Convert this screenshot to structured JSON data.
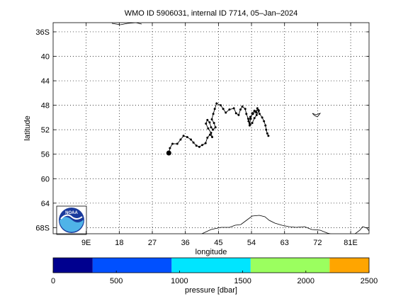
{
  "chart_data": {
    "type": "line",
    "title": "WMO ID 5906031, internal ID 7714, 05–Jan–2024",
    "xlabel": "longitude",
    "ylabel": "latitude",
    "xlim": [
      0,
      86
    ],
    "ylim": [
      -69,
      -34.5
    ],
    "x_ticks": [
      9,
      18,
      27,
      36,
      45,
      54,
      63,
      72,
      81
    ],
    "x_tick_labels": [
      "9E",
      "18",
      "27",
      "36",
      "45",
      "54",
      "63",
      "72",
      "81E"
    ],
    "y_ticks": [
      -36,
      -40,
      -44,
      -48,
      -52,
      -56,
      -60,
      -64,
      -68
    ],
    "y_tick_labels": [
      "36S",
      "40",
      "44",
      "48",
      "52",
      "56",
      "60",
      "64",
      "68S"
    ],
    "grid": true,
    "grid_style": "dotted",
    "series": [
      {
        "marker": "dot",
        "color": "#000000",
        "start_marker": [
          31.5,
          -55.8
        ],
        "points": [
          [
            31.5,
            -55.8
          ],
          [
            31.8,
            -55.0
          ],
          [
            32.5,
            -54.3
          ],
          [
            33.8,
            -54.3
          ],
          [
            34.7,
            -53.6
          ],
          [
            35.5,
            -53.0
          ],
          [
            36.5,
            -53.2
          ],
          [
            37.5,
            -53.6
          ],
          [
            38.2,
            -54.1
          ],
          [
            39.0,
            -54.6
          ],
          [
            39.8,
            -54.8
          ],
          [
            40.6,
            -54.5
          ],
          [
            41.5,
            -54.2
          ],
          [
            42.0,
            -53.3
          ],
          [
            42.7,
            -52.8
          ],
          [
            43.3,
            -53.2
          ],
          [
            43.0,
            -52.5
          ],
          [
            42.2,
            -51.8
          ],
          [
            41.6,
            -51.0
          ],
          [
            42.0,
            -50.4
          ],
          [
            42.6,
            -50.8
          ],
          [
            43.0,
            -51.6
          ],
          [
            43.5,
            -52.0
          ],
          [
            44.2,
            -51.6
          ],
          [
            43.8,
            -50.9
          ],
          [
            43.2,
            -50.3
          ],
          [
            43.6,
            -49.4
          ],
          [
            44.0,
            -48.6
          ],
          [
            44.5,
            -47.7
          ],
          [
            45.6,
            -48.0
          ],
          [
            46.3,
            -48.6
          ],
          [
            47.0,
            -49.2
          ],
          [
            48.0,
            -48.7
          ],
          [
            49.2,
            -48.5
          ],
          [
            49.8,
            -49.3
          ],
          [
            50.5,
            -49.6
          ],
          [
            51.0,
            -48.7
          ],
          [
            51.5,
            -48.2
          ],
          [
            52.3,
            -48.6
          ],
          [
            52.6,
            -49.4
          ],
          [
            53.1,
            -50.2
          ],
          [
            53.5,
            -51.0
          ],
          [
            53.8,
            -50.2
          ],
          [
            54.2,
            -49.3
          ],
          [
            54.8,
            -48.9
          ],
          [
            55.3,
            -49.2
          ],
          [
            55.6,
            -48.5
          ],
          [
            56.0,
            -48.9
          ],
          [
            55.4,
            -49.6
          ],
          [
            54.8,
            -50.1
          ],
          [
            54.2,
            -50.9
          ],
          [
            53.5,
            -51.3
          ],
          [
            53.2,
            -50.6
          ],
          [
            53.7,
            -49.9
          ],
          [
            54.4,
            -49.4
          ],
          [
            55.1,
            -49.0
          ],
          [
            55.9,
            -48.8
          ],
          [
            56.2,
            -49.4
          ],
          [
            56.9,
            -50.0
          ],
          [
            57.4,
            -50.6
          ],
          [
            57.8,
            -51.3
          ],
          [
            58.0,
            -52.0
          ],
          [
            58.3,
            -52.6
          ],
          [
            58.6,
            -53.0
          ]
        ]
      }
    ],
    "colorbar": {
      "label": "pressure [dbar]",
      "ticks": [
        0,
        500,
        1000,
        1500,
        2000,
        2500
      ],
      "range": [
        0,
        2500
      ],
      "bands": [
        {
          "from": 0,
          "to": 313,
          "color": "#00008f"
        },
        {
          "from": 313,
          "to": 938,
          "color": "#0050ff"
        },
        {
          "from": 938,
          "to": 1563,
          "color": "#00e5ff"
        },
        {
          "from": 1563,
          "to": 2188,
          "color": "#9bff5f"
        },
        {
          "from": 2188,
          "to": 2500,
          "color": "#ffa500"
        }
      ]
    }
  },
  "logo": {
    "text": "NOAA"
  }
}
